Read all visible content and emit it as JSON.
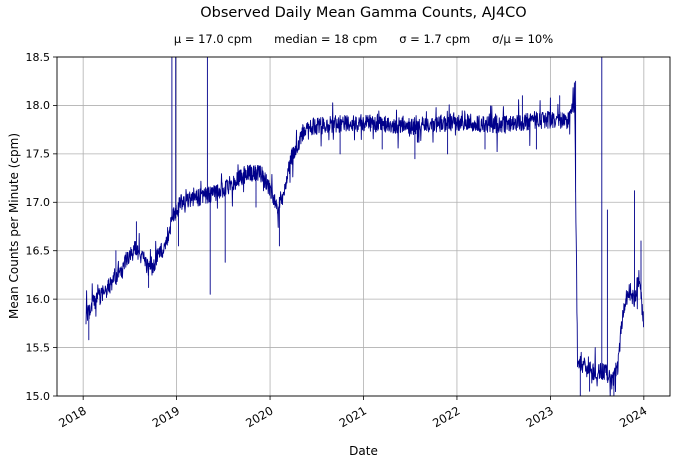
{
  "chart_data": {
    "type": "line",
    "title": "Observed Daily Mean Gamma Counts, AJ4CO",
    "stats_line": "μ = 17.0 cpm      median = 18 cpm      σ = 1.7 cpm      σ/μ = 10%",
    "stats": {
      "mu_cpm": 17.0,
      "median_cpm": 18,
      "sigma_cpm": 1.7,
      "sigma_over_mu_pct": 10
    },
    "xlabel": "Date",
    "ylabel": "Mean Counts per Minute (cpm)",
    "xlim": [
      2017.72,
      2024.28
    ],
    "ylim": [
      15.0,
      18.5
    ],
    "xticks": [
      2018,
      2019,
      2020,
      2021,
      2022,
      2023,
      2024
    ],
    "yticks": [
      15.0,
      15.5,
      16.0,
      16.5,
      17.0,
      17.5,
      18.0,
      18.5
    ],
    "grid": true,
    "grid_color": "#b0b0b0",
    "line_color": "#00008b",
    "axis_color": "#000000",
    "trend_anchors": [
      [
        2018.03,
        15.8
      ],
      [
        2018.1,
        15.95
      ],
      [
        2018.25,
        16.1
      ],
      [
        2018.4,
        16.3
      ],
      [
        2018.55,
        16.55
      ],
      [
        2018.62,
        16.45
      ],
      [
        2018.72,
        16.3
      ],
      [
        2018.8,
        16.45
      ],
      [
        2018.88,
        16.55
      ],
      [
        2018.96,
        16.85
      ],
      [
        2019.05,
        17.0
      ],
      [
        2019.25,
        17.05
      ],
      [
        2019.45,
        17.1
      ],
      [
        2019.6,
        17.2
      ],
      [
        2019.75,
        17.3
      ],
      [
        2019.9,
        17.3
      ],
      [
        2020.0,
        17.15
      ],
      [
        2020.08,
        16.95
      ],
      [
        2020.15,
        17.1
      ],
      [
        2020.22,
        17.45
      ],
      [
        2020.3,
        17.6
      ],
      [
        2020.38,
        17.78
      ],
      [
        2020.6,
        17.8
      ],
      [
        2021.0,
        17.82
      ],
      [
        2021.5,
        17.78
      ],
      [
        2022.0,
        17.83
      ],
      [
        2022.5,
        17.8
      ],
      [
        2022.9,
        17.85
      ],
      [
        2023.2,
        17.85
      ],
      [
        2023.26,
        18.05
      ],
      [
        2023.29,
        15.35
      ],
      [
        2023.45,
        15.25
      ],
      [
        2023.6,
        15.25
      ],
      [
        2023.66,
        15.15
      ],
      [
        2023.72,
        15.3
      ],
      [
        2023.78,
        15.9
      ],
      [
        2023.84,
        16.1
      ],
      [
        2023.9,
        16.0
      ],
      [
        2023.95,
        16.25
      ],
      [
        2024.0,
        15.75
      ]
    ],
    "spikes": [
      [
        2018.06,
        15.58
      ],
      [
        2018.35,
        16.5
      ],
      [
        2018.57,
        16.8
      ],
      [
        2018.7,
        16.12
      ],
      [
        2018.95,
        18.6
      ],
      [
        2018.99,
        18.6
      ],
      [
        2019.02,
        16.55
      ],
      [
        2019.33,
        18.6
      ],
      [
        2019.36,
        16.05
      ],
      [
        2019.52,
        16.38
      ],
      [
        2019.85,
        16.95
      ],
      [
        2020.1,
        16.55
      ],
      [
        2020.75,
        17.5
      ],
      [
        2021.2,
        17.55
      ],
      [
        2021.55,
        17.45
      ],
      [
        2021.9,
        17.5
      ],
      [
        2022.3,
        17.55
      ],
      [
        2022.7,
        18.1
      ],
      [
        2022.85,
        17.55
      ],
      [
        2023.1,
        18.1
      ],
      [
        2023.27,
        18.25
      ],
      [
        2023.32,
        15.0
      ],
      [
        2023.42,
        15.05
      ],
      [
        2023.55,
        18.6
      ],
      [
        2023.61,
        16.92
      ],
      [
        2023.68,
        15.0
      ],
      [
        2023.9,
        17.12
      ],
      [
        2023.97,
        16.6
      ]
    ],
    "noise": 0.09,
    "burst_prob": 0.08,
    "burst_amp": 0.22,
    "seed": 42,
    "samples_per_year": 300
  }
}
